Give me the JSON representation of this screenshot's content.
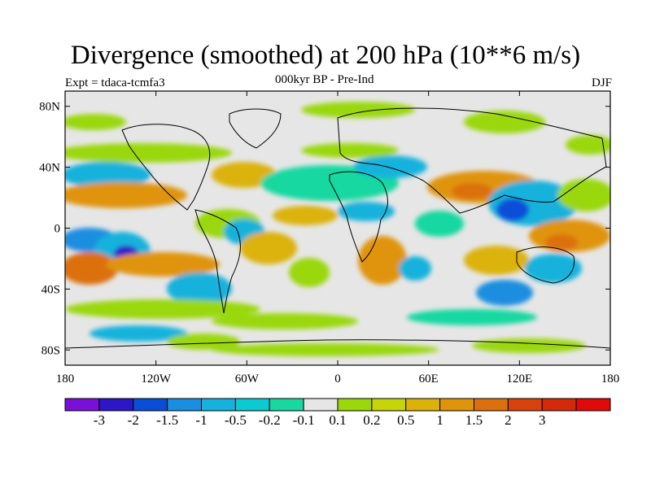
{
  "title": "Divergence (smoothed) at 200 hPa (10**6 m/s)",
  "experiment": "Expt = tdaca-tcmfa3",
  "period": "000kyr BP - Pre-Ind",
  "season": "DJF",
  "map": {
    "projection": "cylindrical equidistant",
    "lon_range": [
      -180,
      180
    ],
    "lat_range": [
      -90,
      90
    ],
    "x_tick_labels": [
      "180",
      "120W",
      "60W",
      "0",
      "60E",
      "120E",
      "180"
    ],
    "y_tick_labels": [
      "80N",
      "40N",
      "0",
      "40S",
      "80S"
    ],
    "background_color": "#e6e6e6"
  },
  "colorbar": {
    "labels": [
      "-3",
      "-2",
      "-1.5",
      "-1",
      "-0.5",
      "-0.2",
      "-0.1",
      "0.1",
      "0.2",
      "0.5",
      "1",
      "1.5",
      "2",
      "3"
    ],
    "colors": [
      "#7a10d8",
      "#2d16c8",
      "#0a4ed8",
      "#1a8ee0",
      "#14b2dc",
      "#0ccad2",
      "#18d8a0",
      "#e6e6e6",
      "#9ad80a",
      "#c6d40a",
      "#dcb20a",
      "#e0940a",
      "#dc700c",
      "#d8420c",
      "#d42a0a",
      "#e00a0a"
    ]
  }
}
